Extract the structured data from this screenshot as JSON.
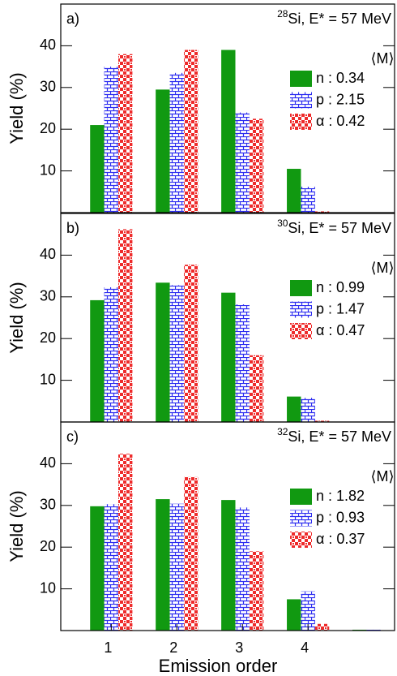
{
  "chart_data": [
    {
      "type": "bar",
      "panel_label": "a)",
      "annotation": {
        "mass": "28",
        "text": "Si, E* = 57 MeV"
      },
      "ylabel": "Yield (%)",
      "x": [
        1,
        2,
        3,
        4
      ],
      "xlim": [
        0.23,
        5.32
      ],
      "ylim": [
        0,
        50
      ],
      "yticks": [
        10,
        20,
        30,
        40
      ],
      "legend_title": "⟨M⟩",
      "series": [
        {
          "name": "n : 0.34",
          "color": "#119911",
          "pattern": "solid",
          "values": [
            21,
            29.5,
            39,
            10.5
          ]
        },
        {
          "name": "p : 2.15",
          "color": "#2b2bf0",
          "pattern": "brick",
          "values": [
            35,
            33.5,
            24,
            6.2
          ]
        },
        {
          "name": "α : 0.42",
          "color": "#ee2b2b",
          "pattern": "check",
          "values": [
            38,
            39,
            22.5,
            0.3
          ]
        }
      ]
    },
    {
      "type": "bar",
      "panel_label": "b)",
      "annotation": {
        "mass": "30",
        "text": "Si, E* = 57 MeV"
      },
      "ylabel": "Yield (%)",
      "x": [
        1,
        2,
        3,
        4
      ],
      "xlim": [
        0.23,
        5.32
      ],
      "ylim": [
        0,
        50
      ],
      "yticks": [
        10,
        20,
        30,
        40
      ],
      "legend_title": "⟨M⟩",
      "series": [
        {
          "name": "n : 0.99",
          "color": "#119911",
          "pattern": "solid",
          "values": [
            29.2,
            33.4,
            31,
            6.1
          ]
        },
        {
          "name": "p : 1.47",
          "color": "#2b2bf0",
          "pattern": "brick",
          "values": [
            32.3,
            32.8,
            28.2,
            5.8
          ]
        },
        {
          "name": "α : 0.47",
          "color": "#ee2b2b",
          "pattern": "check",
          "values": [
            46.2,
            37.7,
            16,
            0.3
          ]
        }
      ]
    },
    {
      "type": "bar",
      "panel_label": "c)",
      "annotation": {
        "mass": "32",
        "text": "Si, E* = 57 MeV"
      },
      "ylabel": "Yield (%)",
      "xlabel": "Emission order",
      "x": [
        1,
        2,
        3,
        4,
        5
      ],
      "xlim": [
        0.23,
        5.32
      ],
      "xticks": [
        1,
        2,
        3,
        4
      ],
      "ylim": [
        0,
        50
      ],
      "yticks": [
        10,
        20,
        30,
        40
      ],
      "legend_title": "⟨M⟩",
      "series": [
        {
          "name": "n : 1.82",
          "color": "#119911",
          "pattern": "solid",
          "values": [
            29.8,
            31.5,
            31.3,
            7.5,
            0.2
          ]
        },
        {
          "name": "p : 0.93",
          "color": "#2b2bf0",
          "pattern": "brick",
          "values": [
            30.3,
            30.4,
            29.5,
            9.4,
            0.2
          ]
        },
        {
          "name": "α : 0.37",
          "color": "#ee2b2b",
          "pattern": "check",
          "values": [
            42.4,
            36.8,
            19,
            1.6,
            0
          ]
        }
      ]
    }
  ]
}
